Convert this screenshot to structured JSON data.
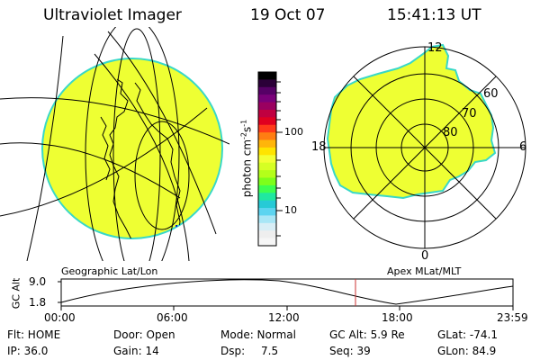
{
  "header": {
    "title": "Ultraviolet Imager",
    "date": "19 Oct 07",
    "time": "15:41:13 UT"
  },
  "colorbar": {
    "label": "photon cm",
    "label_sup1": "-2",
    "label_mid": "s",
    "label_sup2": "-1",
    "ticks": [
      "100",
      "10"
    ],
    "colors": [
      "#000000",
      "#2b0038",
      "#560066",
      "#7a007a",
      "#9a0060",
      "#c00040",
      "#e00020",
      "#ff3a1a",
      "#ff7d12",
      "#ffb50a",
      "#ffe400",
      "#f3ff33",
      "#d6ff24",
      "#b4ff1a",
      "#7dff1a",
      "#3cff50",
      "#20e8a0",
      "#26cad6",
      "#5cd4f0",
      "#a8e6f6",
      "#d8eef6",
      "#eeeeee",
      "#f6f6f6"
    ]
  },
  "geo_panel": {
    "caption": "Geographic Lat/Lon",
    "fill_color": "#eeff33"
  },
  "polar_panel": {
    "caption": "Apex MLat/MLT",
    "lat_labels": [
      "60",
      "70",
      "80"
    ],
    "mlt_labels": {
      "top": "12",
      "bottom": "0",
      "left": "18",
      "right": "6"
    },
    "fill_color": "#eeff33"
  },
  "altitude_plot": {
    "ylabel": "GC Alt",
    "ymax_label": "9.0",
    "ymin_label": "1.8",
    "x_ticks": [
      "00:00",
      "06:00",
      "12:00",
      "18:00",
      "23:59"
    ],
    "marker_color": "#cc3333"
  },
  "info": {
    "flt": "Flt: HOME",
    "ip": "IP: 36.0",
    "door": "Door: Open",
    "gain": "Gain: 14",
    "mode": "Mode: Normal",
    "dsp_label": "Dsp:",
    "dsp_value": "7.5",
    "gc_alt": "GC Alt: 5.9 Re",
    "seq": "Seq: 39",
    "glat": "GLat: -74.1",
    "glon": "GLon: 84.9"
  }
}
